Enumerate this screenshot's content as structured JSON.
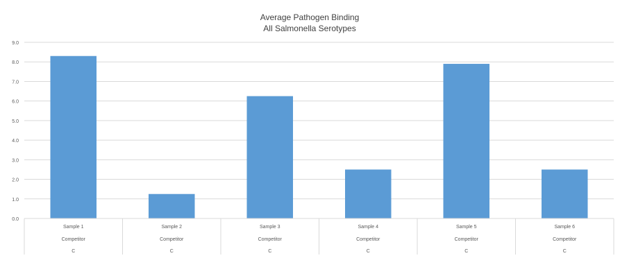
{
  "chart_data": {
    "type": "bar",
    "title": "Average Pathogen Binding",
    "subtitle": "All Salmonella  Serotypes",
    "categories": [
      [
        "Sample 1",
        "Competitor",
        "C"
      ],
      [
        "Sample 2",
        "Competitor",
        "C"
      ],
      [
        "Sample 3",
        "Competitor",
        "C"
      ],
      [
        "Sample 4",
        "Competitor",
        "C"
      ],
      [
        "Sample 5",
        "Competitor",
        "C"
      ],
      [
        "Sample 6",
        "Competitor",
        "C"
      ]
    ],
    "values": [
      8.3,
      1.25,
      6.25,
      2.5,
      7.9,
      2.5
    ],
    "ylim": [
      0,
      9
    ],
    "yticks": [
      "0.0",
      "1.0",
      "2.0",
      "3.0",
      "4.0",
      "5.0",
      "6.0",
      "7.0",
      "8.0",
      "9.0"
    ],
    "grid": true,
    "bar_color": "#5b9bd5",
    "grid_color": "#d9d9d9"
  }
}
